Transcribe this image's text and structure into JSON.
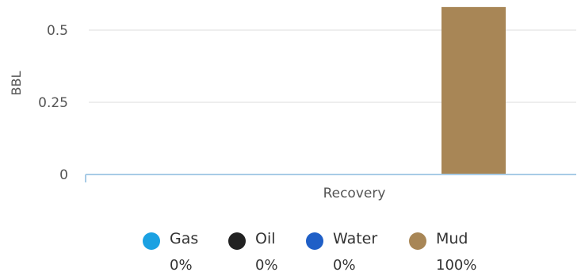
{
  "chart_data": {
    "type": "bar",
    "title": "",
    "xlabel": "Recovery",
    "ylabel": "BBL",
    "ylim": [
      0,
      0.5
    ],
    "y_ticks": [
      "0",
      "0.25",
      "0.5"
    ],
    "y_tick_values": [
      0,
      0.25,
      0.5
    ],
    "grid": true,
    "categories": [
      "Recovery"
    ],
    "series": [
      {
        "name": "Gas",
        "value": 0,
        "percent": "0%",
        "color": "#1ba1e2"
      },
      {
        "name": "Oil",
        "value": 0,
        "percent": "0%",
        "color": "#222222"
      },
      {
        "name": "Water",
        "value": 0,
        "percent": "0%",
        "color": "#1f5fc7"
      },
      {
        "name": "Mud",
        "value": 0.58,
        "percent": "100%",
        "color": "#a88656"
      }
    ],
    "legend_position": "bottom"
  }
}
